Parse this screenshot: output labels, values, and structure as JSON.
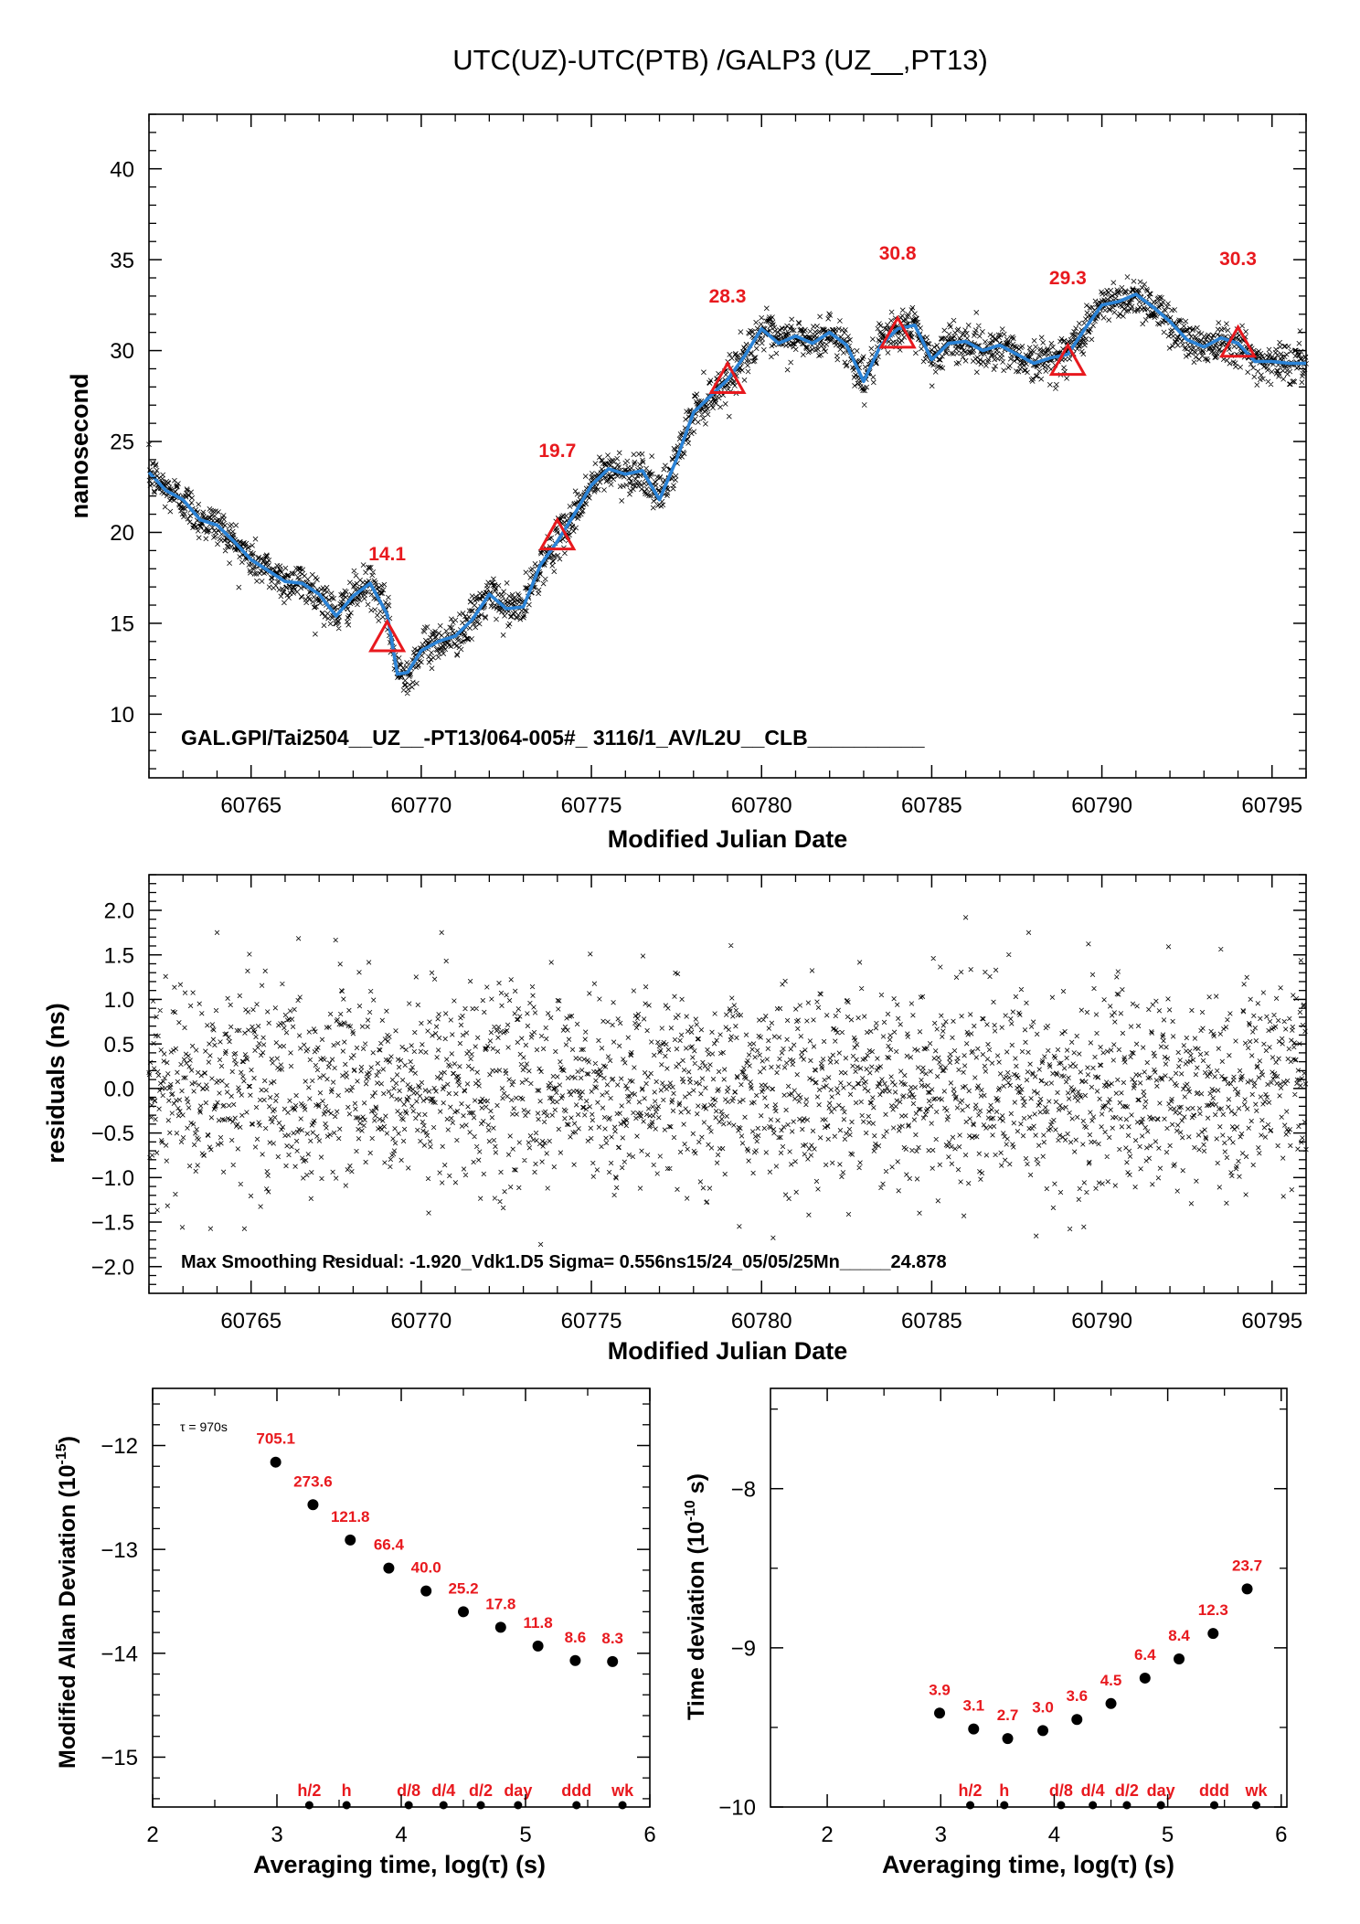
{
  "figure_title": "UTC(UZ)-UTC(PTB)  /GALP3  (UZ__,PT13)",
  "colors": {
    "smooth_line": "#2b83d6",
    "markers_red": "#e8191e",
    "points": "#000000"
  },
  "chart_data": [
    {
      "type": "line",
      "id": "top",
      "title": "UTC(UZ)-UTC(PTB)  /GALP3  (UZ__,PT13)",
      "xlabel": "Modified Julian Date",
      "ylabel": "nanosecond",
      "xlim": [
        60762.0,
        60796.0
      ],
      "ylim": [
        6.5,
        43.0
      ],
      "x_ticks": [
        60765,
        60770,
        60775,
        60780,
        60785,
        60790,
        60795
      ],
      "x_tick_labels": [
        "60765",
        "60770",
        "60775",
        "60780",
        "60785",
        "60790",
        "60795"
      ],
      "y_ticks": [
        10,
        15,
        20,
        25,
        30,
        35,
        40
      ],
      "y_tick_labels": [
        "10",
        "15",
        "20",
        "25",
        "30",
        "35",
        "40"
      ],
      "annotation": "GAL.GPI/Tai2504__UZ__-PT13/064-005#_  3116/1_AV/L2U__CLB__________",
      "smooth_series": {
        "x": [
          60762.0,
          60762.5,
          60763.0,
          60763.5,
          60764.0,
          60764.5,
          60765.0,
          60765.5,
          60766.0,
          60766.5,
          60767.0,
          60767.5,
          60768.0,
          60768.5,
          60769.0,
          60769.3,
          60769.6,
          60770.0,
          60770.5,
          60771.0,
          60771.5,
          60772.0,
          60772.5,
          60773.0,
          60773.5,
          60774.0,
          60774.5,
          60775.0,
          60775.5,
          60776.0,
          60776.5,
          60777.0,
          60777.5,
          60778.0,
          60778.5,
          60779.0,
          60779.5,
          60780.0,
          60780.5,
          60781.0,
          60781.5,
          60782.0,
          60782.5,
          60783.0,
          60783.5,
          60784.0,
          60784.5,
          60785.0,
          60785.5,
          60786.0,
          60786.5,
          60787.0,
          60787.5,
          60788.0,
          60788.5,
          60789.0,
          60789.5,
          60790.0,
          60790.5,
          60791.0,
          60791.5,
          60792.0,
          60792.5,
          60793.0,
          60793.5,
          60794.0,
          60794.5,
          60795.0,
          60795.5,
          60796.0
        ],
        "y": [
          23.3,
          22.3,
          21.8,
          20.7,
          20.4,
          19.5,
          18.5,
          17.9,
          17.3,
          17.2,
          16.6,
          15.4,
          16.5,
          17.2,
          15.5,
          12.2,
          12.3,
          13.5,
          14.0,
          14.3,
          15.2,
          16.6,
          15.8,
          15.9,
          18.2,
          19.5,
          21.0,
          22.6,
          23.5,
          23.2,
          23.4,
          21.8,
          24.0,
          26.6,
          27.5,
          28.4,
          29.7,
          31.2,
          30.4,
          30.8,
          30.4,
          31.0,
          30.3,
          28.3,
          30.3,
          31.2,
          31.4,
          29.5,
          30.4,
          30.5,
          30.0,
          30.3,
          29.8,
          29.3,
          29.6,
          29.8,
          31.2,
          32.5,
          32.7,
          33.1,
          32.4,
          31.6,
          30.6,
          30.2,
          30.7,
          30.4,
          29.4,
          29.4,
          29.3,
          29.3
        ]
      },
      "markers": [
        {
          "x": 60769.0,
          "y": 14.1,
          "label": "14.1"
        },
        {
          "x": 60774.0,
          "y": 19.7,
          "label": "19.7"
        },
        {
          "x": 60779.0,
          "y": 28.3,
          "label": "28.3"
        },
        {
          "x": 60784.0,
          "y": 30.8,
          "label": "30.8"
        },
        {
          "x": 60789.0,
          "y": 29.3,
          "label": "29.3"
        },
        {
          "x": 60794.0,
          "y": 30.3,
          "label": "30.3"
        }
      ],
      "scatter_noise_sigma": 0.556
    },
    {
      "type": "scatter",
      "id": "residuals",
      "xlabel": "Modified Julian Date",
      "ylabel": "residuals (ns)",
      "xlim": [
        60762.0,
        60796.0
      ],
      "ylim": [
        -2.3,
        2.4
      ],
      "x_ticks": [
        60765,
        60770,
        60775,
        60780,
        60785,
        60790,
        60795
      ],
      "x_tick_labels": [
        "60765",
        "60770",
        "60775",
        "60780",
        "60785",
        "60790",
        "60795"
      ],
      "y_ticks": [
        -2.0,
        -1.5,
        -1.0,
        -0.5,
        0.0,
        0.5,
        1.0,
        1.5,
        2.0
      ],
      "y_tick_labels": [
        "−2.0",
        "−1.5",
        "−1.0",
        "−0.5",
        "0.0",
        "0.5",
        "1.0",
        "1.5",
        "2.0"
      ],
      "annotation": "Max Smoothing Residual: -1.920_Vdk1.D5  Sigma= 0.556ns15/24_05/05/25Mn_____24.878",
      "sigma": 0.556,
      "max_residual": {
        "x": 60786.0,
        "y": 1.92
      },
      "min_residual": {
        "x": 60767.5,
        "y": -1.92
      }
    },
    {
      "type": "scatter",
      "id": "mdev",
      "xlabel": "Averaging time, log(τ) (s)",
      "ylabel": "Modified Allan Deviation (10",
      "ylabel_exp": "-15",
      "ylabel_end": ")",
      "tau_note": "τ = 970s",
      "xlim": [
        2.0,
        6.0
      ],
      "ylim": [
        -15.48,
        -11.45
      ],
      "x_ticks": [
        2,
        3,
        4,
        5,
        6
      ],
      "x_tick_labels": [
        "2",
        "3",
        "4",
        "5",
        "6"
      ],
      "y_ticks": [
        -15,
        -14,
        -13,
        -12
      ],
      "y_tick_labels": [
        "−15",
        "−14",
        "−13",
        "−12"
      ],
      "points": [
        {
          "x": 2.99,
          "y": -12.16,
          "label": "705.1"
        },
        {
          "x": 3.29,
          "y": -12.57,
          "label": "273.6"
        },
        {
          "x": 3.59,
          "y": -12.91,
          "label": "121.8"
        },
        {
          "x": 3.9,
          "y": -13.18,
          "label": "66.4"
        },
        {
          "x": 4.2,
          "y": -13.4,
          "label": "40.0"
        },
        {
          "x": 4.5,
          "y": -13.6,
          "label": "25.2"
        },
        {
          "x": 4.8,
          "y": -13.75,
          "label": "17.8"
        },
        {
          "x": 5.1,
          "y": -13.93,
          "label": "11.8"
        },
        {
          "x": 5.4,
          "y": -14.07,
          "label": "8.6"
        },
        {
          "x": 5.7,
          "y": -14.08,
          "label": "8.3"
        }
      ],
      "interval_markers": [
        {
          "x": 3.26,
          "label": "h/2"
        },
        {
          "x": 3.56,
          "label": "h"
        },
        {
          "x": 4.06,
          "label": "d/8"
        },
        {
          "x": 4.34,
          "label": "d/4"
        },
        {
          "x": 4.64,
          "label": "d/2"
        },
        {
          "x": 4.94,
          "label": "day"
        },
        {
          "x": 5.41,
          "label": "ddd"
        },
        {
          "x": 5.78,
          "label": "wk"
        }
      ]
    },
    {
      "type": "scatter",
      "id": "tdev",
      "xlabel": "Averaging time, log(τ) (s)",
      "ylabel": "Time deviation (10",
      "ylabel_exp": "-10",
      "ylabel_end": " s)",
      "xlim": [
        1.5,
        6.05
      ],
      "ylim": [
        -10.0,
        -7.37
      ],
      "x_ticks": [
        2,
        3,
        4,
        5,
        6
      ],
      "x_tick_labels": [
        "2",
        "3",
        "4",
        "5",
        "6"
      ],
      "y_ticks": [
        -10,
        -9,
        -8
      ],
      "y_tick_labels": [
        "−10",
        "−9",
        "−8"
      ],
      "points": [
        {
          "x": 2.99,
          "y": -9.41,
          "label": "3.9"
        },
        {
          "x": 3.29,
          "y": -9.51,
          "label": "3.1"
        },
        {
          "x": 3.59,
          "y": -9.57,
          "label": "2.7"
        },
        {
          "x": 3.9,
          "y": -9.52,
          "label": "3.0"
        },
        {
          "x": 4.2,
          "y": -9.45,
          "label": "3.6"
        },
        {
          "x": 4.5,
          "y": -9.35,
          "label": "4.5"
        },
        {
          "x": 4.8,
          "y": -9.19,
          "label": "6.4"
        },
        {
          "x": 5.1,
          "y": -9.07,
          "label": "8.4"
        },
        {
          "x": 5.4,
          "y": -8.91,
          "label": "12.3"
        },
        {
          "x": 5.7,
          "y": -8.63,
          "label": "23.7"
        }
      ],
      "interval_markers": [
        {
          "x": 3.26,
          "label": "h/2"
        },
        {
          "x": 3.56,
          "label": "h"
        },
        {
          "x": 4.06,
          "label": "d/8"
        },
        {
          "x": 4.34,
          "label": "d/4"
        },
        {
          "x": 4.64,
          "label": "d/2"
        },
        {
          "x": 4.94,
          "label": "day"
        },
        {
          "x": 5.41,
          "label": "ddd"
        },
        {
          "x": 5.78,
          "label": "wk"
        }
      ]
    }
  ]
}
